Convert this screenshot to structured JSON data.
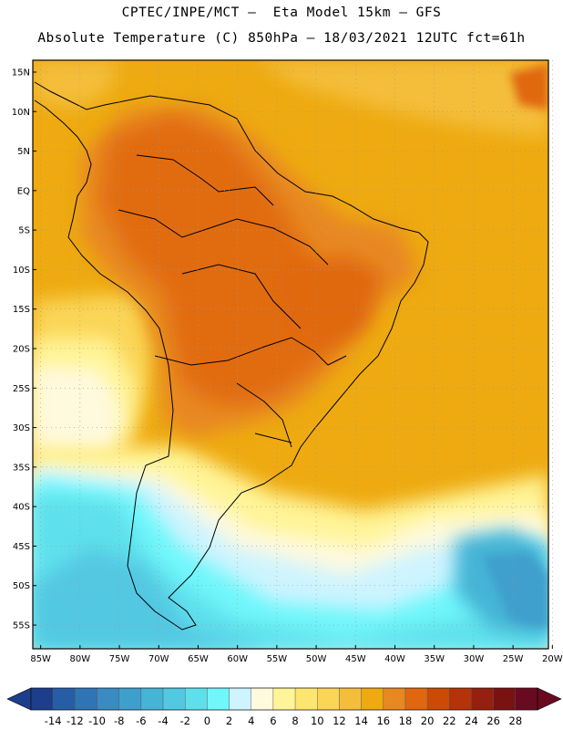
{
  "header": {
    "line1": "CPTEC/INPE/MCT –  Eta Model 15km – GFS",
    "line2": "Absolute Temperature (C) 850hPa – 18/03/2021 12UTC fct=61h"
  },
  "map": {
    "lat_ticks": [
      "15N",
      "10N",
      "5N",
      "EQ",
      "5S",
      "10S",
      "15S",
      "20S",
      "25S",
      "30S",
      "35S",
      "40S",
      "45S",
      "50S",
      "55S"
    ],
    "lat_values": [
      15,
      10,
      5,
      0,
      -5,
      -10,
      -15,
      -20,
      -25,
      -30,
      -35,
      -40,
      -45,
      -50,
      -55
    ],
    "lon_ticks": [
      "85W",
      "80W",
      "75W",
      "70W",
      "65W",
      "60W",
      "55W",
      "50W",
      "45W",
      "40W",
      "35W",
      "30W",
      "25W",
      "20W"
    ],
    "lon_values": [
      -85,
      -80,
      -75,
      -70,
      -65,
      -60,
      -55,
      -50,
      -45,
      -40,
      -35,
      -30,
      -25,
      -20
    ],
    "lat_range": [
      -58,
      16.5
    ],
    "lon_range": [
      -86,
      -20.5
    ]
  },
  "colorbar": {
    "labels": [
      "-14",
      "-12",
      "-10",
      "-8",
      "-6",
      "-4",
      "-2",
      "0",
      "2",
      "4",
      "6",
      "8",
      "10",
      "12",
      "14",
      "16",
      "18",
      "20",
      "22",
      "24",
      "26",
      "28"
    ],
    "colors": [
      "#1d3e8c",
      "#255da6",
      "#2f74b4",
      "#3a8bc2",
      "#3f9fcc",
      "#45b4d6",
      "#52c8e2",
      "#5ee0ec",
      "#6ff7fb",
      "#cdf4ff",
      "#fff9de",
      "#fff497",
      "#fde66f",
      "#fad556",
      "#f4be3a",
      "#eeaa10",
      "#e88820",
      "#e06710",
      "#cc4a05",
      "#b43308",
      "#962010",
      "#7a1212",
      "#6a0a20"
    ]
  }
}
